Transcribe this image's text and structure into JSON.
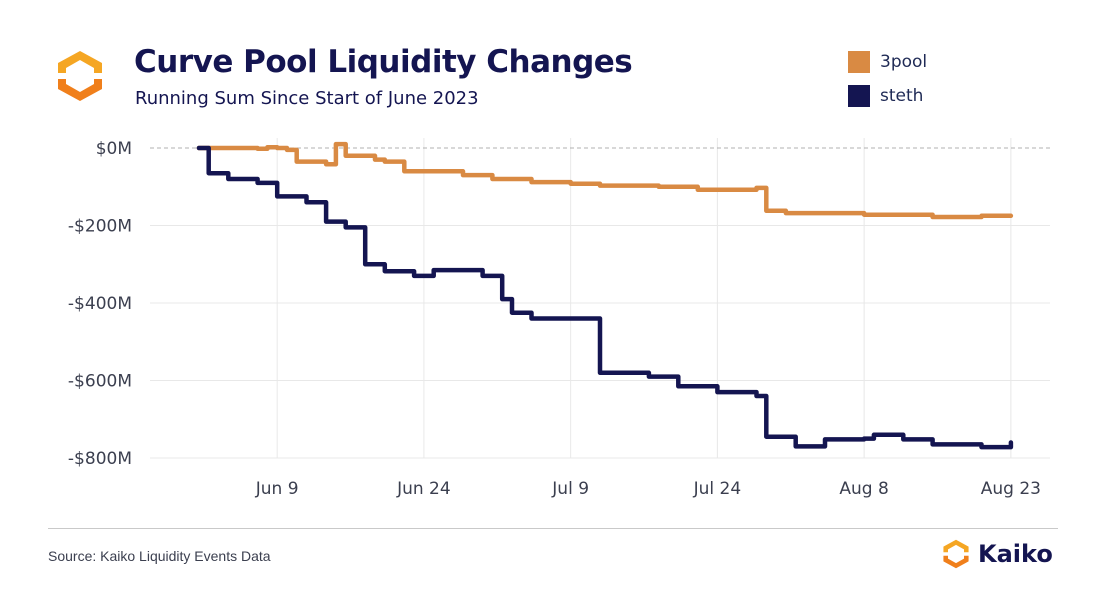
{
  "header": {
    "title": "Curve Pool Liquidity Changes",
    "subtitle": "Running Sum Since Start of June 2023"
  },
  "footer": {
    "source": "Source: Kaiko Liquidity Events Data",
    "brand": "Kaiko"
  },
  "colors": {
    "3pool": "#d98a43",
    "steth": "#141551",
    "grid": "#e8e8e8",
    "zero_line": "#b0b0b0"
  },
  "chart_data": {
    "type": "line",
    "title": "Curve Pool Liquidity Changes",
    "subtitle": "Running Sum Since Start of June 2023",
    "xlabel": "",
    "ylabel": "",
    "x_start": "2023-06-01",
    "x_end": "2023-08-23",
    "xticks": [
      "Jun 9",
      "Jun 24",
      "Jul 9",
      "Jul 24",
      "Aug 8",
      "Aug 23"
    ],
    "xtick_dates": [
      "2023-06-09",
      "2023-06-24",
      "2023-07-09",
      "2023-07-24",
      "2023-08-08",
      "2023-08-23"
    ],
    "yticks": [
      "$0M",
      "-$200M",
      "-$400M",
      "-$600M",
      "-$800M"
    ],
    "ytick_values": [
      0,
      -200,
      -400,
      -600,
      -800
    ],
    "ylim": [
      -800,
      0
    ],
    "grid": true,
    "zero_line": "dashed",
    "legend_position": "top-right",
    "series": [
      {
        "name": "3pool",
        "color": "#d98a43",
        "points": [
          [
            "2023-06-01",
            0
          ],
          [
            "2023-06-07",
            -2
          ],
          [
            "2023-06-08",
            2
          ],
          [
            "2023-06-09",
            0
          ],
          [
            "2023-06-10",
            -5
          ],
          [
            "2023-06-11",
            -35
          ],
          [
            "2023-06-14",
            -42
          ],
          [
            "2023-06-15",
            10
          ],
          [
            "2023-06-16",
            -20
          ],
          [
            "2023-06-19",
            -30
          ],
          [
            "2023-06-20",
            -35
          ],
          [
            "2023-06-22",
            -60
          ],
          [
            "2023-06-28",
            -70
          ],
          [
            "2023-07-01",
            -80
          ],
          [
            "2023-07-05",
            -88
          ],
          [
            "2023-07-09",
            -92
          ],
          [
            "2023-07-12",
            -97
          ],
          [
            "2023-07-18",
            -100
          ],
          [
            "2023-07-22",
            -108
          ],
          [
            "2023-07-28",
            -103
          ],
          [
            "2023-07-29",
            -162
          ],
          [
            "2023-07-31",
            -168
          ],
          [
            "2023-08-08",
            -172
          ],
          [
            "2023-08-15",
            -178
          ],
          [
            "2023-08-20",
            -175
          ],
          [
            "2023-08-23",
            -175
          ]
        ]
      },
      {
        "name": "steth",
        "color": "#141551",
        "points": [
          [
            "2023-06-01",
            0
          ],
          [
            "2023-06-02",
            -65
          ],
          [
            "2023-06-04",
            -80
          ],
          [
            "2023-06-07",
            -90
          ],
          [
            "2023-06-09",
            -125
          ],
          [
            "2023-06-12",
            -140
          ],
          [
            "2023-06-14",
            -190
          ],
          [
            "2023-06-16",
            -205
          ],
          [
            "2023-06-18",
            -300
          ],
          [
            "2023-06-20",
            -318
          ],
          [
            "2023-06-23",
            -330
          ],
          [
            "2023-06-25",
            -315
          ],
          [
            "2023-06-30",
            -330
          ],
          [
            "2023-07-02",
            -390
          ],
          [
            "2023-07-03",
            -425
          ],
          [
            "2023-07-05",
            -440
          ],
          [
            "2023-07-11",
            -440
          ],
          [
            "2023-07-12",
            -580
          ],
          [
            "2023-07-17",
            -590
          ],
          [
            "2023-07-20",
            -615
          ],
          [
            "2023-07-24",
            -630
          ],
          [
            "2023-07-28",
            -640
          ],
          [
            "2023-07-29",
            -745
          ],
          [
            "2023-08-01",
            -770
          ],
          [
            "2023-08-04",
            -752
          ],
          [
            "2023-08-08",
            -750
          ],
          [
            "2023-08-09",
            -740
          ],
          [
            "2023-08-12",
            -752
          ],
          [
            "2023-08-15",
            -765
          ],
          [
            "2023-08-20",
            -772
          ],
          [
            "2023-08-23",
            -760
          ]
        ]
      }
    ]
  }
}
